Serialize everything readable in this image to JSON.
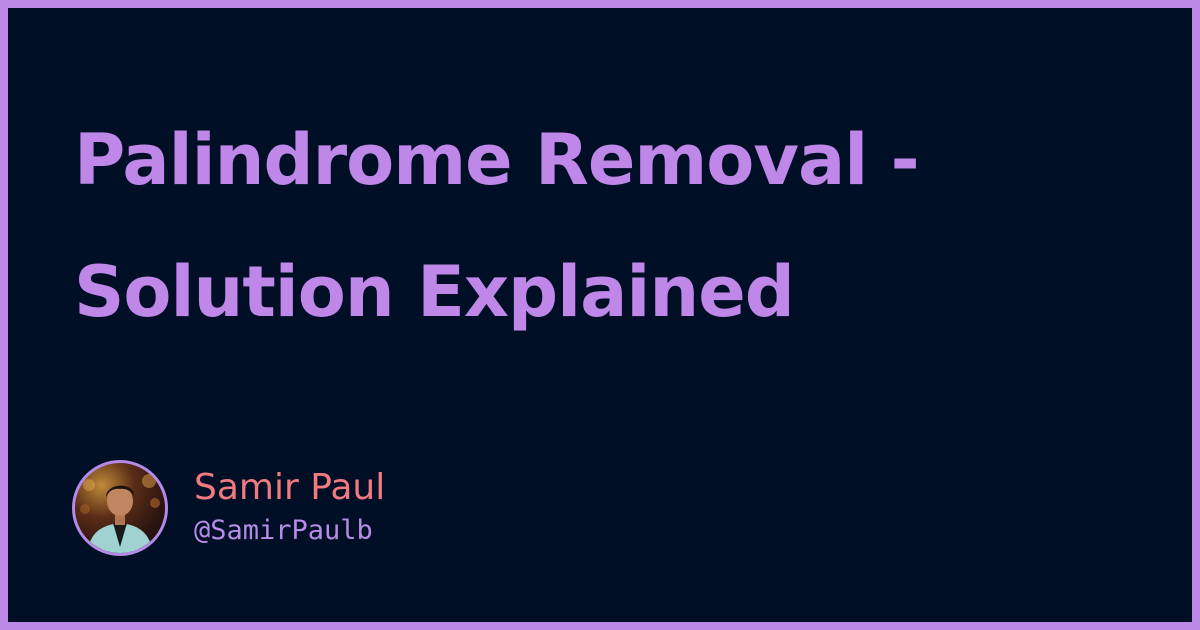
{
  "title": "Palindrome Removal - Solution Explained",
  "author": {
    "name": "Samir Paul",
    "handle": "@SamirPaulb",
    "avatar_icon": "person-avatar"
  },
  "colors": {
    "border": "#bb88e6",
    "background": "#000f26",
    "title": "#bf87e8",
    "author_name": "#f07a80",
    "author_handle": "#b78ce6"
  }
}
